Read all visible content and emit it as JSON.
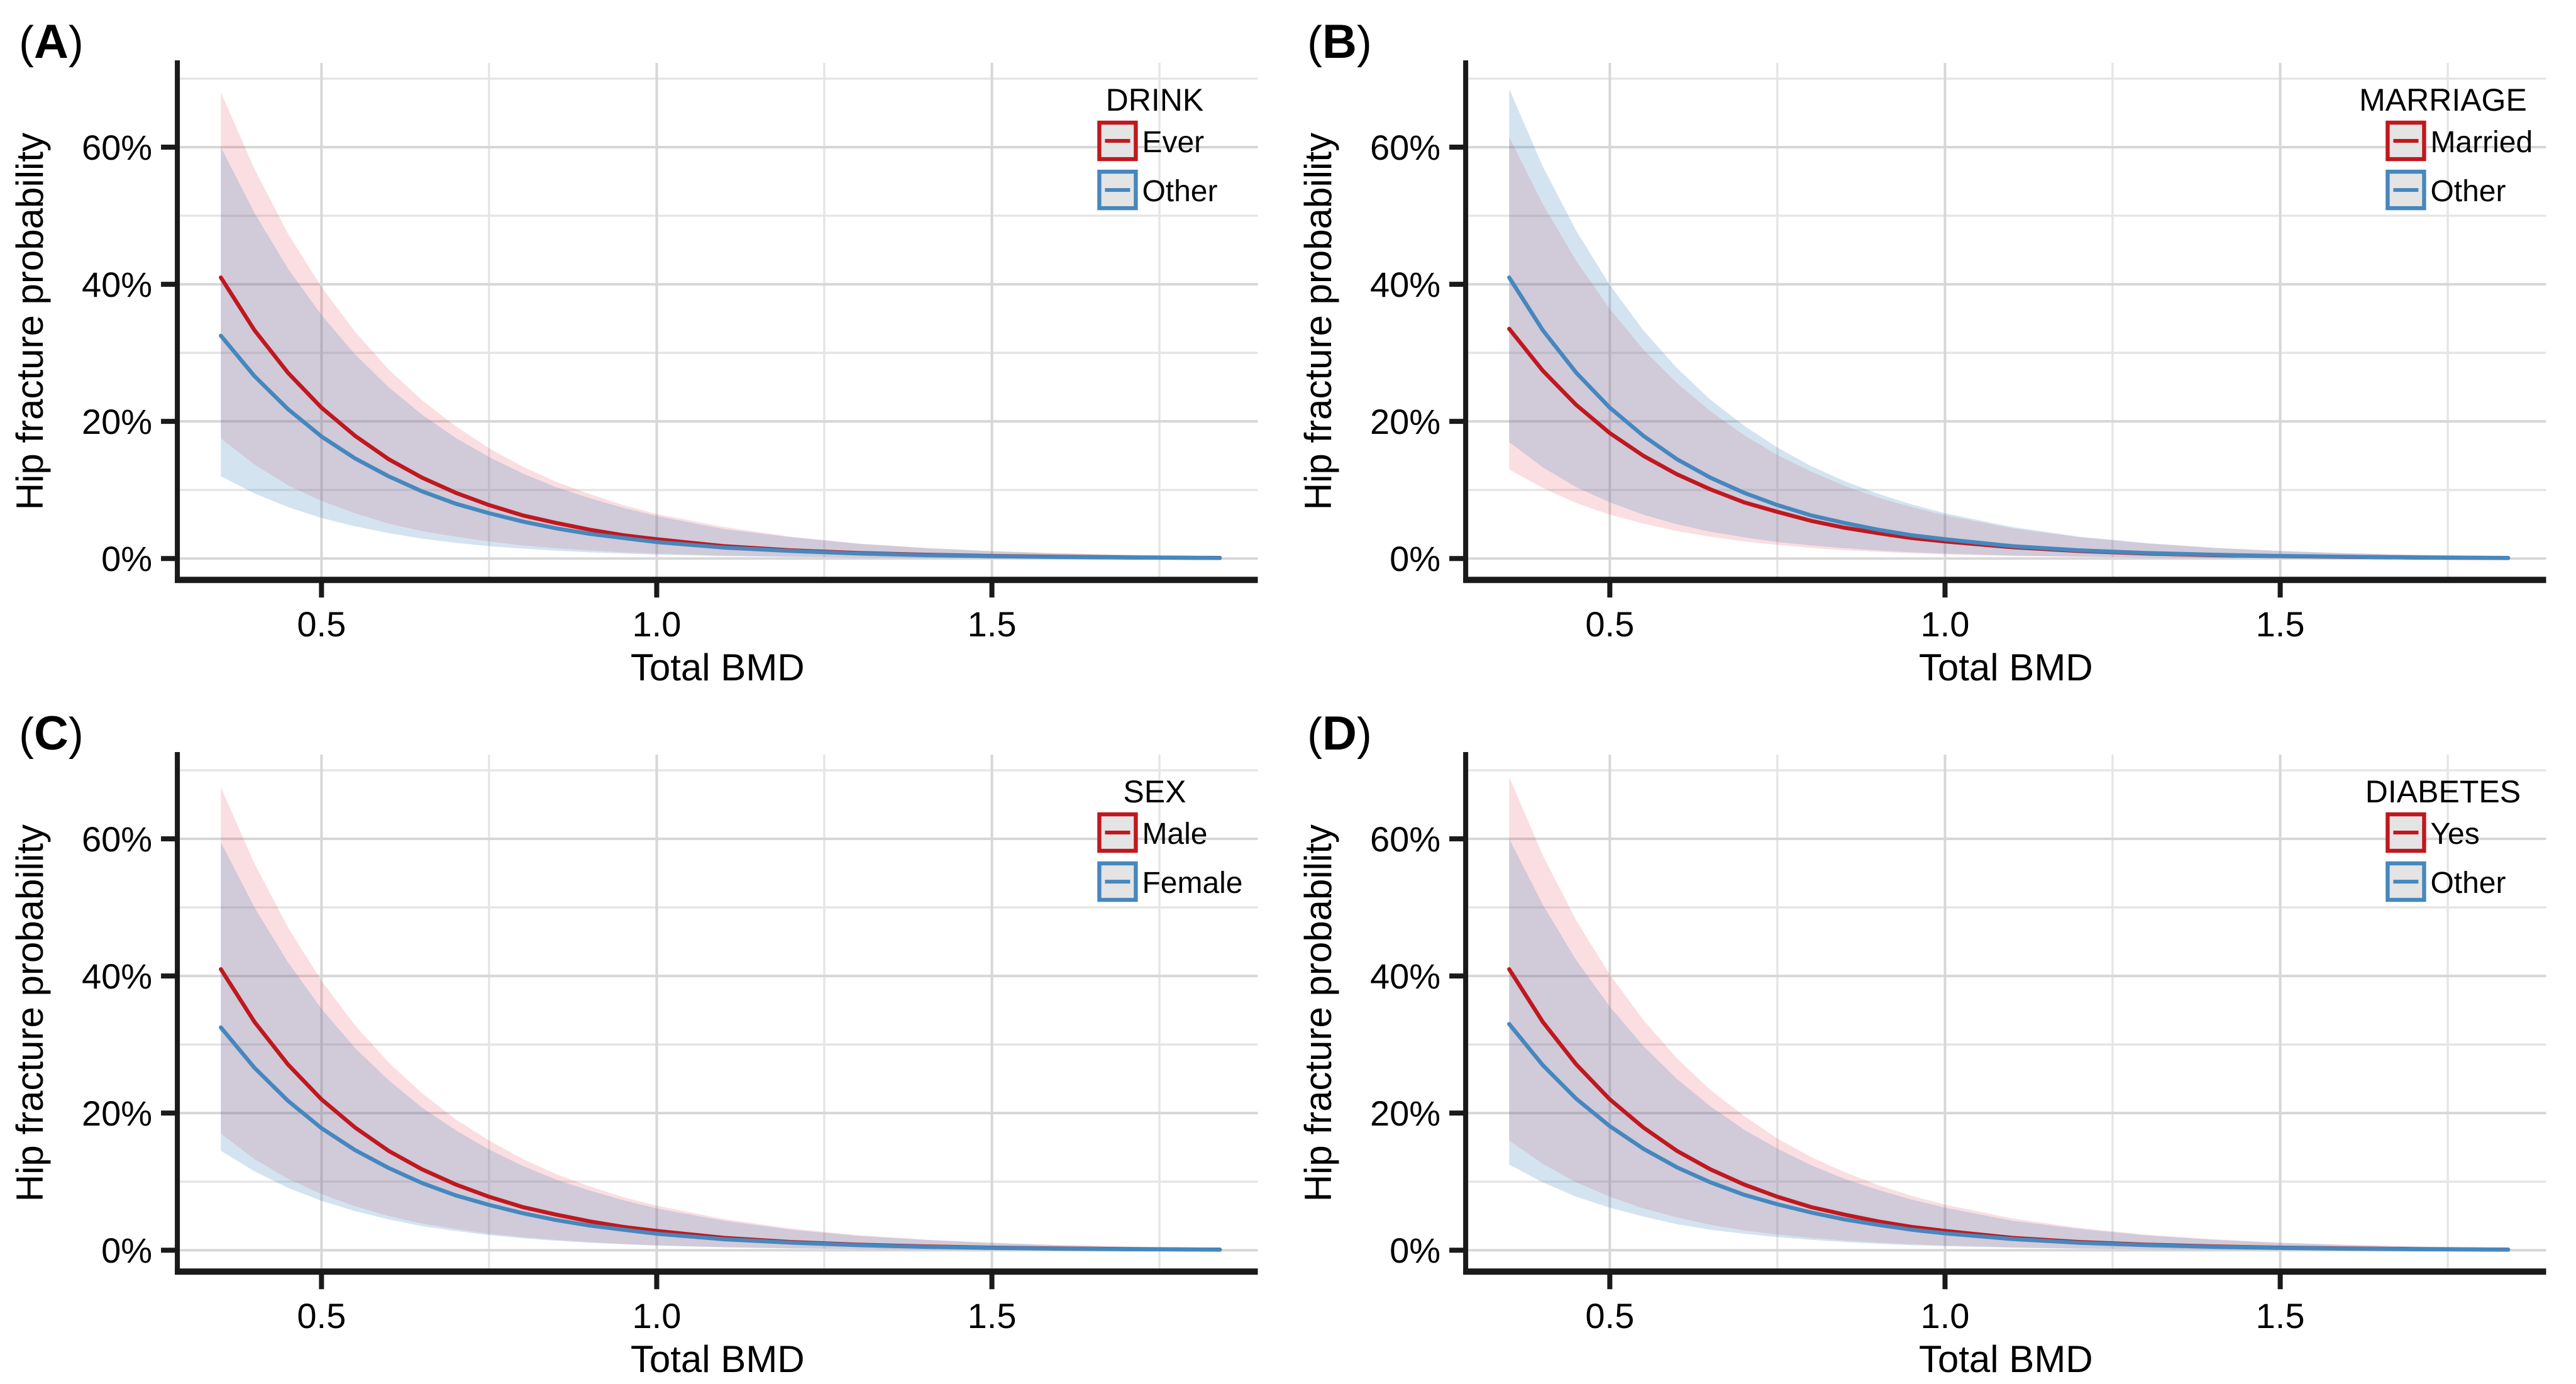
{
  "figure": {
    "background": "#FFFFFF",
    "layout": "2x2 panels"
  },
  "style": {
    "colors": {
      "red_line": "#C0181E",
      "blue_line": "#4687BE",
      "red_fill": "rgba(226,61,75,0.17)",
      "blue_fill": "rgba(74,138,191,0.24)",
      "legend_key_fill": "#E4E4E4",
      "grid_major": "#D7D7D7",
      "grid_minor": "#E5E5E5",
      "axis": "#1A1A1A",
      "text": "#000000"
    }
  },
  "axes": {
    "xlabel": "Total BMD",
    "ylabel": "Hip fracture probability",
    "x_ticks": [
      0.5,
      1.0,
      1.5
    ],
    "x_tick_labels": [
      "0.5",
      "1.0",
      "1.5"
    ],
    "x_minor_gridlines": [
      0.75,
      1.25,
      1.75
    ],
    "y_ticks_percent": [
      0,
      20,
      40,
      60
    ],
    "y_tick_labels": [
      "0%",
      "20%",
      "40%",
      "60%"
    ],
    "y_minor_gridlines_percent": [
      10,
      30,
      50,
      70
    ],
    "xlim": [
      0.285,
      1.9
    ],
    "ylim_percent": [
      -3.1,
      72.3
    ],
    "grid": "major+minor",
    "legend_position": "inside-top-right",
    "x_values": [
      0.35,
      0.4,
      0.45,
      0.5,
      0.55,
      0.6,
      0.65,
      0.7,
      0.75,
      0.8,
      0.85,
      0.9,
      0.95,
      1.0,
      1.1,
      1.2,
      1.3,
      1.4,
      1.5,
      1.6,
      1.7,
      1.84
    ]
  },
  "chart_data": [
    {
      "id": "A",
      "tag_prefix": "(",
      "tag_letter": "A",
      "tag_suffix": ")",
      "type": "line",
      "legend_title": "DRINK",
      "series": [
        {
          "name": "Ever",
          "color_key": "red",
          "y_percent": [
            41.0,
            33.3,
            27.1,
            22.0,
            17.9,
            14.5,
            11.8,
            9.6,
            7.8,
            6.3,
            5.2,
            4.2,
            3.4,
            2.8,
            1.8,
            1.2,
            0.8,
            0.55,
            0.37,
            0.25,
            0.17,
            0.09
          ],
          "upper_percent": [
            68.0,
            56.8,
            47.4,
            39.6,
            33.1,
            27.6,
            23.1,
            19.3,
            16.1,
            13.4,
            11.2,
            9.4,
            7.8,
            6.5,
            4.6,
            3.2,
            2.2,
            1.55,
            1.08,
            0.75,
            0.53,
            0.32
          ],
          "lower_percent": [
            17.5,
            13.7,
            10.7,
            8.4,
            6.6,
            5.1,
            4.0,
            3.2,
            2.5,
            1.9,
            1.5,
            1.2,
            0.92,
            0.72,
            0.44,
            0.27,
            0.17,
            0.1,
            0.06,
            0.04,
            0.02,
            0.01
          ]
        },
        {
          "name": "Other",
          "color_key": "blue",
          "y_percent": [
            32.5,
            26.6,
            21.8,
            17.8,
            14.6,
            12.0,
            9.8,
            8.0,
            6.6,
            5.4,
            4.4,
            3.6,
            3.0,
            2.4,
            1.6,
            1.1,
            0.73,
            0.49,
            0.33,
            0.22,
            0.15,
            0.08
          ],
          "upper_percent": [
            60.0,
            50.4,
            42.3,
            35.5,
            29.8,
            25.0,
            21.0,
            17.6,
            14.8,
            12.4,
            10.4,
            8.8,
            7.4,
            6.2,
            4.3,
            3.1,
            2.15,
            1.52,
            1.07,
            0.75,
            0.53,
            0.33
          ],
          "lower_percent": [
            12.0,
            9.5,
            7.5,
            5.9,
            4.7,
            3.7,
            2.9,
            2.3,
            1.8,
            1.45,
            1.14,
            0.9,
            0.71,
            0.56,
            0.35,
            0.22,
            0.14,
            0.09,
            0.05,
            0.03,
            0.02,
            0.01
          ]
        }
      ]
    },
    {
      "id": "B",
      "tag_prefix": "(",
      "tag_letter": "B",
      "tag_suffix": ")",
      "type": "line",
      "legend_title": "MARRIAGE",
      "series": [
        {
          "name": "Married",
          "color_key": "red",
          "y_percent": [
            33.5,
            27.4,
            22.4,
            18.3,
            15.0,
            12.3,
            10.1,
            8.2,
            6.8,
            5.5,
            4.5,
            3.7,
            3.0,
            2.5,
            1.65,
            1.1,
            0.74,
            0.5,
            0.34,
            0.23,
            0.15,
            0.08
          ],
          "upper_percent": [
            61.5,
            51.7,
            43.4,
            36.4,
            30.5,
            25.6,
            21.5,
            18.0,
            15.1,
            12.7,
            10.6,
            8.9,
            7.5,
            6.3,
            4.4,
            3.1,
            2.2,
            1.54,
            1.08,
            0.76,
            0.53,
            0.33
          ],
          "lower_percent": [
            13.0,
            10.3,
            8.1,
            6.4,
            5.1,
            4.0,
            3.2,
            2.5,
            2.0,
            1.55,
            1.22,
            0.97,
            0.76,
            0.6,
            0.37,
            0.23,
            0.15,
            0.09,
            0.06,
            0.04,
            0.02,
            0.01
          ]
        },
        {
          "name": "Other",
          "color_key": "blue",
          "y_percent": [
            41.0,
            33.3,
            27.1,
            22.0,
            17.9,
            14.5,
            11.8,
            9.6,
            7.8,
            6.3,
            5.2,
            4.2,
            3.4,
            2.8,
            1.8,
            1.2,
            0.8,
            0.55,
            0.37,
            0.25,
            0.17,
            0.09
          ],
          "upper_percent": [
            68.5,
            57.2,
            47.8,
            39.9,
            33.3,
            27.8,
            23.2,
            19.4,
            16.2,
            13.5,
            11.3,
            9.45,
            7.9,
            6.6,
            4.6,
            3.2,
            2.25,
            1.57,
            1.1,
            0.77,
            0.54,
            0.33
          ],
          "lower_percent": [
            17.0,
            13.3,
            10.4,
            8.2,
            6.4,
            5.0,
            3.9,
            3.1,
            2.4,
            1.9,
            1.5,
            1.17,
            0.92,
            0.72,
            0.44,
            0.27,
            0.17,
            0.1,
            0.06,
            0.04,
            0.02,
            0.01
          ]
        }
      ]
    },
    {
      "id": "C",
      "tag_prefix": "(",
      "tag_letter": "C",
      "tag_suffix": ")",
      "type": "line",
      "legend_title": "SEX",
      "series": [
        {
          "name": "Male",
          "color_key": "red",
          "y_percent": [
            41.0,
            33.3,
            27.1,
            22.0,
            17.9,
            14.5,
            11.8,
            9.6,
            7.8,
            6.3,
            5.2,
            4.2,
            3.4,
            2.8,
            1.8,
            1.2,
            0.8,
            0.55,
            0.37,
            0.25,
            0.17,
            0.09
          ],
          "upper_percent": [
            67.5,
            56.4,
            47.1,
            39.3,
            32.8,
            27.4,
            22.9,
            19.1,
            16.0,
            13.3,
            11.1,
            9.3,
            7.75,
            6.5,
            4.55,
            3.18,
            2.2,
            1.55,
            1.08,
            0.75,
            0.53,
            0.32
          ],
          "lower_percent": [
            17.0,
            13.3,
            10.4,
            8.2,
            6.4,
            5.0,
            3.9,
            3.1,
            2.4,
            1.9,
            1.5,
            1.17,
            0.92,
            0.72,
            0.44,
            0.27,
            0.17,
            0.1,
            0.06,
            0.04,
            0.02,
            0.01
          ]
        },
        {
          "name": "Female",
          "color_key": "blue",
          "y_percent": [
            32.5,
            26.6,
            21.8,
            17.8,
            14.6,
            12.0,
            9.8,
            8.0,
            6.6,
            5.4,
            4.4,
            3.6,
            3.0,
            2.4,
            1.6,
            1.1,
            0.73,
            0.49,
            0.33,
            0.22,
            0.15,
            0.08
          ],
          "upper_percent": [
            59.5,
            50.0,
            42.0,
            35.2,
            29.5,
            24.8,
            20.8,
            17.5,
            14.7,
            12.3,
            10.3,
            8.7,
            7.3,
            6.1,
            4.3,
            3.0,
            2.1,
            1.5,
            1.06,
            0.74,
            0.52,
            0.33
          ],
          "lower_percent": [
            14.5,
            11.5,
            9.1,
            7.2,
            5.7,
            4.5,
            3.5,
            2.8,
            2.2,
            1.75,
            1.38,
            1.09,
            0.86,
            0.68,
            0.42,
            0.26,
            0.16,
            0.1,
            0.06,
            0.04,
            0.03,
            0.01
          ]
        }
      ]
    },
    {
      "id": "D",
      "tag_prefix": "(",
      "tag_letter": "D",
      "tag_suffix": ")",
      "type": "line",
      "legend_title": "DIABETES",
      "series": [
        {
          "name": "Yes",
          "color_key": "red",
          "y_percent": [
            41.0,
            33.3,
            27.1,
            22.0,
            17.9,
            14.5,
            11.8,
            9.6,
            7.8,
            6.3,
            5.2,
            4.2,
            3.4,
            2.8,
            1.8,
            1.2,
            0.8,
            0.55,
            0.37,
            0.25,
            0.17,
            0.09
          ],
          "upper_percent": [
            69.0,
            57.6,
            48.1,
            40.2,
            33.6,
            28.0,
            23.4,
            19.6,
            16.3,
            13.6,
            11.4,
            9.5,
            7.95,
            6.65,
            4.65,
            3.25,
            2.27,
            1.59,
            1.11,
            0.78,
            0.54,
            0.33
          ],
          "lower_percent": [
            16.0,
            12.6,
            9.9,
            7.8,
            6.1,
            4.8,
            3.7,
            2.9,
            2.3,
            1.8,
            1.42,
            1.12,
            0.88,
            0.69,
            0.42,
            0.26,
            0.16,
            0.1,
            0.06,
            0.04,
            0.02,
            0.01
          ]
        },
        {
          "name": "Other",
          "color_key": "blue",
          "y_percent": [
            33.0,
            27.0,
            22.1,
            18.1,
            14.8,
            12.1,
            9.9,
            8.1,
            6.7,
            5.5,
            4.5,
            3.7,
            3.0,
            2.45,
            1.63,
            1.09,
            0.73,
            0.49,
            0.33,
            0.22,
            0.15,
            0.08
          ],
          "upper_percent": [
            60.0,
            50.4,
            42.3,
            35.5,
            29.8,
            25.0,
            21.0,
            17.6,
            14.8,
            12.4,
            10.4,
            8.8,
            7.4,
            6.2,
            4.3,
            3.1,
            2.15,
            1.52,
            1.07,
            0.75,
            0.53,
            0.33
          ],
          "lower_percent": [
            12.5,
            9.9,
            7.8,
            6.2,
            4.9,
            3.8,
            3.0,
            2.4,
            1.9,
            1.5,
            1.19,
            0.94,
            0.74,
            0.58,
            0.36,
            0.22,
            0.14,
            0.09,
            0.05,
            0.03,
            0.02,
            0.01
          ]
        }
      ]
    }
  ]
}
